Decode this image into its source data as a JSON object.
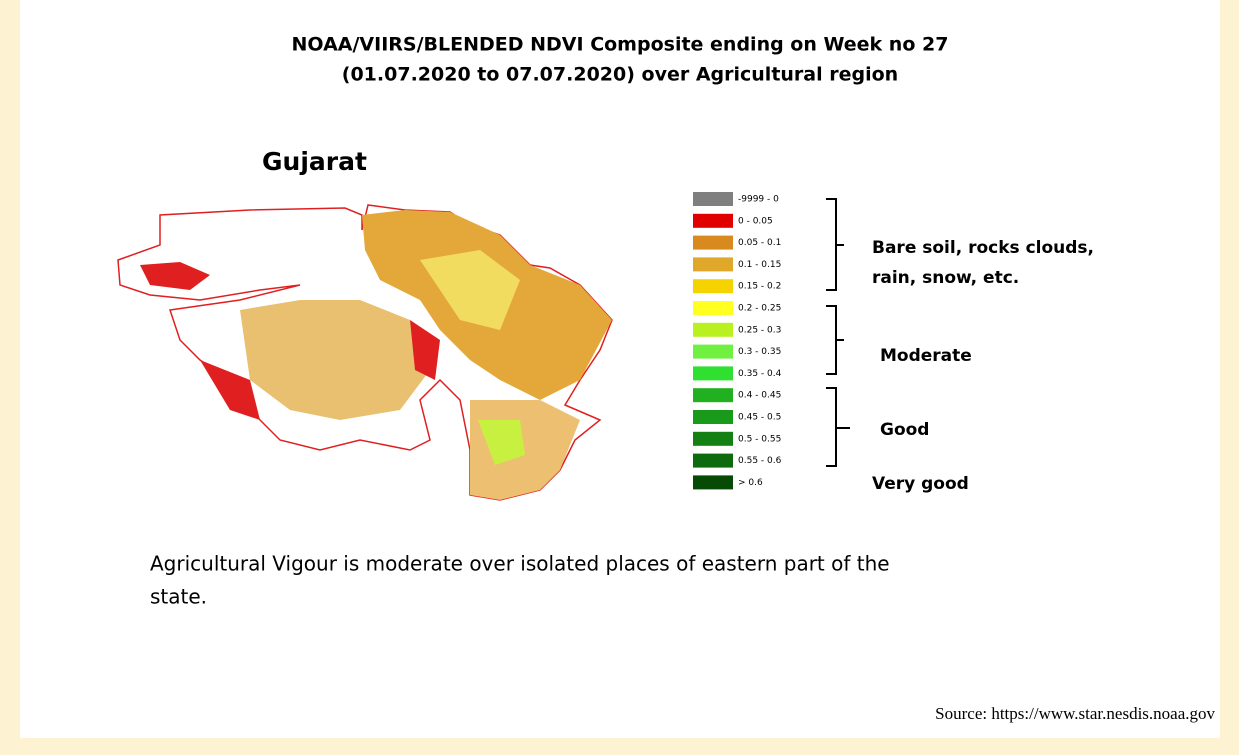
{
  "title_lines": [
    "NOAA/VIIRS/BLENDED NDVI Composite ending on Week no 27",
    "(01.07.2020 to 07.07.2020) over Agricultural region"
  ],
  "map_label": "Gujarat",
  "legend": [
    {
      "label": "-9999 - 0",
      "color": "#7f7f7f"
    },
    {
      "label": "0 - 0.05",
      "color": "#e00000"
    },
    {
      "label": "0.05 - 0.1",
      "color": "#d98a1e"
    },
    {
      "label": "0.1 - 0.15",
      "color": "#e0a82a"
    },
    {
      "label": "0.15 - 0.2",
      "color": "#f5d300"
    },
    {
      "label": "0.2 - 0.25",
      "color": "#ffff20"
    },
    {
      "label": "0.25 - 0.3",
      "color": "#b8f020"
    },
    {
      "label": "0.3 - 0.35",
      "color": "#70f040"
    },
    {
      "label": "0.35 - 0.4",
      "color": "#30e030"
    },
    {
      "label": "0.4 - 0.45",
      "color": "#20b020"
    },
    {
      "label": "0.45 - 0.5",
      "color": "#1a9a1a"
    },
    {
      "label": "0.5 - 0.55",
      "color": "#148014"
    },
    {
      "label": "0.55 - 0.6",
      "color": "#0e6a0e"
    },
    {
      "label": "> 0.6",
      "color": "#064a06"
    }
  ],
  "groups": [
    {
      "lines": [
        "Bare soil, rocks clouds,",
        "rain, snow, etc."
      ]
    },
    {
      "lines": [
        "Moderate"
      ]
    },
    {
      "lines": [
        "Good"
      ]
    },
    {
      "lines": [
        "Very good"
      ]
    }
  ],
  "description_lines": [
    "Agricultural Vigour is moderate over isolated places of eastern part of the",
    "state."
  ],
  "source": "Source: https://www.star.nesdis.noaa.gov"
}
